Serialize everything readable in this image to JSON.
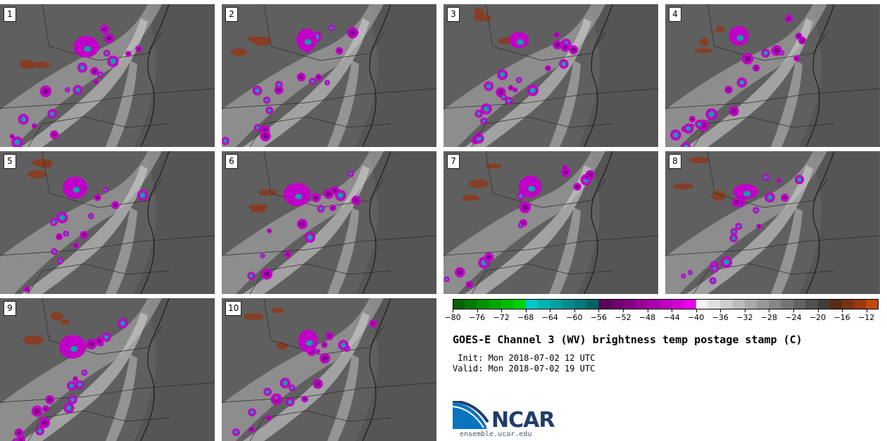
{
  "colors": {
    "map_base": "#5f5f5f",
    "warm_brown": "#8b3a1c",
    "magenta": "#c000c8",
    "purple": "#7a0080",
    "cyan": "#10a0a8",
    "light": "#d8d8d8"
  },
  "panels": [
    {
      "label": "1"
    },
    {
      "label": "2"
    },
    {
      "label": "3"
    },
    {
      "label": "4"
    },
    {
      "label": "5"
    },
    {
      "label": "6"
    },
    {
      "label": "7"
    },
    {
      "label": "8"
    },
    {
      "label": "9"
    },
    {
      "label": "10"
    }
  ],
  "chart_data": {
    "type": "heatmap",
    "title": "GOES-E Channel 3 (WV) brightness temp postage stamp (C)",
    "init_text": " Init: Mon 2018-07-02 12 UTC",
    "valid_text": "Valid: Mon 2018-07-02 19 UTC",
    "members": 10,
    "colorbar": {
      "min": -80,
      "max": -10,
      "step": 2,
      "ticks": [
        -80,
        -76,
        -72,
        -68,
        -64,
        -60,
        -56,
        -52,
        -48,
        -44,
        -40,
        -36,
        -32,
        -28,
        -24,
        -20,
        -16,
        -12
      ],
      "colors": [
        "#006400",
        "#007a00",
        "#009000",
        "#00a600",
        "#00bc00",
        "#00d200",
        "#00c8c8",
        "#00b4b4",
        "#00a0a0",
        "#008c8c",
        "#007878",
        "#006464",
        "#5a005a",
        "#6e006e",
        "#820082",
        "#960096",
        "#aa00aa",
        "#be00be",
        "#d200d2",
        "#e600e6",
        "#f2f2f2",
        "#e0e0e0",
        "#cecece",
        "#bcbcbc",
        "#aaaaaa",
        "#989898",
        "#868686",
        "#747474",
        "#626262",
        "#505050",
        "#3e3e3e",
        "#5a2a14",
        "#7a3214",
        "#9a3a10",
        "#c04a0c",
        "#e0600a"
      ]
    }
  },
  "branding": {
    "logo_text": "NCAR",
    "url": "ensemble.ucar.edu"
  }
}
